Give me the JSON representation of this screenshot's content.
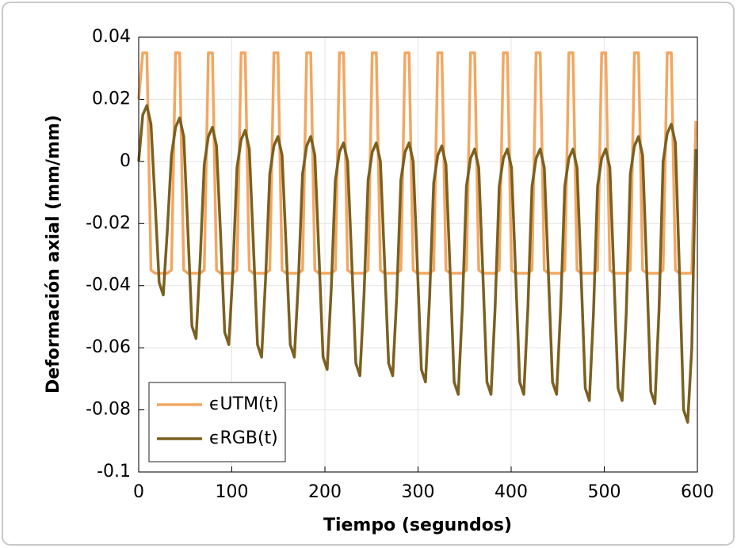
{
  "chart_data": {
    "type": "line",
    "xlabel": "Tiempo (segundos)",
    "ylabel": "Deformación axial (mm/mm)",
    "x": [
      0,
      4.4,
      8.8,
      13.2,
      17.6,
      22,
      26.4,
      30.8,
      35.2,
      39.6,
      44,
      48.4,
      52.8,
      57.2,
      61.6,
      66,
      70.4,
      74.8,
      79.2,
      83.6,
      88,
      92.4,
      96.8,
      101.2,
      105.6,
      110,
      114.4,
      118.8,
      123.2,
      127.6,
      132,
      136.4,
      140.8,
      145.2,
      149.6,
      154,
      158.4,
      162.8,
      167.2,
      171.6,
      176,
      180.4,
      184.8,
      189.2,
      193.6,
      198,
      202.4,
      206.8,
      211.2,
      215.6,
      220,
      224.4,
      228.8,
      233.2,
      237.6,
      242,
      246.4,
      250.8,
      255.2,
      259.6,
      264,
      268.4,
      272.8,
      277.2,
      281.6,
      286,
      290.4,
      294.8,
      299.2,
      303.6,
      308,
      312.4,
      316.8,
      321.2,
      325.6,
      330,
      334.4,
      338.8,
      343.2,
      347.6,
      352,
      356.4,
      360.8,
      365.2,
      369.6,
      374,
      378.4,
      382.8,
      387.2,
      391.6,
      396,
      400.4,
      404.8,
      409.2,
      413.6,
      418,
      422.4,
      426.8,
      431.2,
      435.6,
      440,
      444.4,
      448.8,
      453.2,
      457.6,
      462,
      466.4,
      470.8,
      475.2,
      479.6,
      484,
      488.4,
      492.8,
      497.2,
      501.6,
      506,
      510.4,
      514.8,
      519.2,
      523.6,
      528,
      532.4,
      536.8,
      541.2,
      545.6,
      550,
      554.4,
      558.8,
      563.2,
      567.6,
      572,
      576.4,
      580.8,
      585.2,
      589.6,
      594,
      598.4
    ],
    "series": [
      {
        "name": "ϵUTM(t)",
        "color": "#f2a761",
        "values": [
          0.02,
          0.035,
          0.035,
          -0.035,
          -0.036,
          -0.036,
          -0.036,
          -0.036,
          -0.035,
          0.035,
          0.035,
          -0.035,
          -0.036,
          -0.036,
          -0.036,
          -0.036,
          -0.035,
          0.035,
          0.035,
          -0.035,
          -0.036,
          -0.036,
          -0.036,
          -0.036,
          -0.035,
          0.035,
          0.035,
          -0.035,
          -0.036,
          -0.036,
          -0.036,
          -0.036,
          -0.035,
          0.035,
          0.035,
          -0.035,
          -0.036,
          -0.036,
          -0.036,
          -0.036,
          -0.035,
          0.035,
          0.035,
          -0.035,
          -0.036,
          -0.036,
          -0.036,
          -0.036,
          -0.035,
          0.035,
          0.035,
          -0.035,
          -0.036,
          -0.036,
          -0.036,
          -0.036,
          -0.035,
          0.035,
          0.035,
          -0.035,
          -0.036,
          -0.036,
          -0.036,
          -0.036,
          -0.035,
          0.035,
          0.035,
          -0.035,
          -0.036,
          -0.036,
          -0.036,
          -0.036,
          -0.035,
          0.035,
          0.035,
          -0.035,
          -0.036,
          -0.036,
          -0.036,
          -0.036,
          -0.035,
          0.035,
          0.035,
          -0.035,
          -0.036,
          -0.036,
          -0.036,
          -0.036,
          -0.035,
          0.035,
          0.035,
          -0.035,
          -0.036,
          -0.036,
          -0.036,
          -0.036,
          -0.035,
          0.035,
          0.035,
          -0.035,
          -0.036,
          -0.036,
          -0.036,
          -0.036,
          -0.035,
          0.035,
          0.035,
          -0.035,
          -0.036,
          -0.036,
          -0.036,
          -0.036,
          -0.035,
          0.035,
          0.035,
          -0.035,
          -0.036,
          -0.036,
          -0.036,
          -0.036,
          -0.035,
          0.035,
          0.035,
          -0.035,
          -0.036,
          -0.036,
          -0.036,
          -0.036,
          -0.035,
          0.035,
          0.035,
          -0.035,
          -0.036,
          -0.036,
          -0.036,
          -0.036,
          0.013
        ]
      },
      {
        "name": "ϵRGB(t)",
        "color": "#7b6020",
        "values": [
          0,
          0.015,
          0.018,
          0.012,
          -0.013,
          -0.039,
          -0.043,
          -0.022,
          0.002,
          0.011,
          0.014,
          0.008,
          -0.022,
          -0.053,
          -0.057,
          -0.032,
          -0.001,
          0.008,
          0.011,
          0.005,
          -0.024,
          -0.055,
          -0.059,
          -0.035,
          -0.002,
          0.007,
          0.01,
          0.004,
          -0.027,
          -0.059,
          -0.063,
          -0.037,
          -0.004,
          0.005,
          0.008,
          0.002,
          -0.028,
          -0.059,
          -0.063,
          -0.038,
          -0.004,
          0.005,
          0.008,
          0.002,
          -0.03,
          -0.063,
          -0.067,
          -0.041,
          -0.006,
          0.003,
          0.006,
          0,
          -0.032,
          -0.065,
          -0.069,
          -0.043,
          -0.006,
          0.003,
          0.006,
          0,
          -0.032,
          -0.065,
          -0.069,
          -0.043,
          -0.006,
          0.003,
          0.006,
          0,
          -0.033,
          -0.067,
          -0.071,
          -0.044,
          -0.007,
          0.002,
          0.005,
          -0.001,
          -0.035,
          -0.071,
          -0.075,
          -0.047,
          -0.008,
          0.001,
          0.004,
          -0.002,
          -0.036,
          -0.071,
          -0.075,
          -0.047,
          -0.008,
          0.001,
          0.004,
          -0.002,
          -0.036,
          -0.071,
          -0.075,
          -0.047,
          -0.008,
          0.001,
          0.004,
          -0.002,
          -0.036,
          -0.071,
          -0.075,
          -0.047,
          -0.008,
          0.001,
          0.004,
          -0.002,
          -0.037,
          -0.073,
          -0.077,
          -0.049,
          -0.008,
          0.001,
          0.004,
          -0.002,
          -0.037,
          -0.073,
          -0.077,
          -0.049,
          -0.004,
          0.005,
          0.008,
          0.002,
          -0.035,
          -0.074,
          -0.078,
          -0.048,
          0,
          0.009,
          0.012,
          0.006,
          -0.036,
          -0.08,
          -0.084,
          -0.06,
          0.004
        ]
      }
    ],
    "xlim": [
      0,
      600
    ],
    "xticks": [
      0,
      100,
      200,
      300,
      400,
      500,
      600
    ],
    "ylim": [
      -0.1,
      0.04
    ],
    "yticks": [
      -0.1,
      -0.08,
      -0.06,
      -0.04,
      -0.02,
      0,
      0.02,
      0.04
    ],
    "grid": true,
    "legend": "lower left"
  }
}
